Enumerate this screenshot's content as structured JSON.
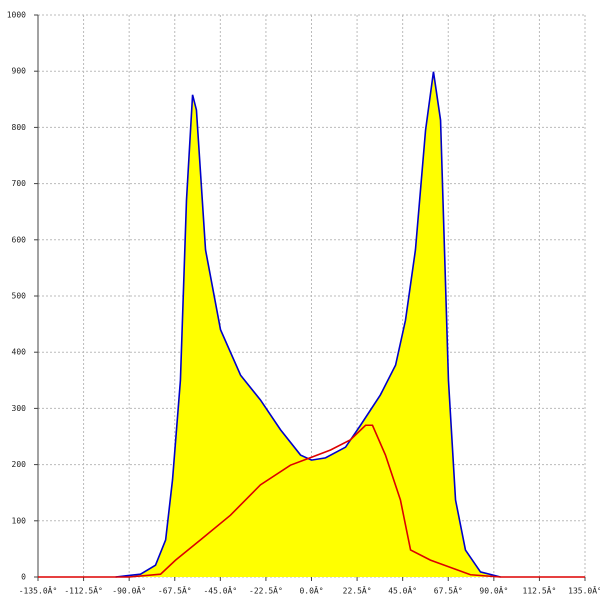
{
  "chart_data": {
    "type": "area",
    "xlim": [
      -135,
      135
    ],
    "ylim": [
      0,
      1000
    ],
    "xticks": [
      {
        "value": -135,
        "label": "-135.0Â°"
      },
      {
        "value": -112.5,
        "label": "-112.5Â°"
      },
      {
        "value": -90,
        "label": "-90.0Â°"
      },
      {
        "value": -67.5,
        "label": "-67.5Â°"
      },
      {
        "value": -45,
        "label": "-45.0Â°"
      },
      {
        "value": -22.5,
        "label": "-22.5Â°"
      },
      {
        "value": 0,
        "label": "0.0Â°"
      },
      {
        "value": 22.5,
        "label": "22.5Â°"
      },
      {
        "value": 45,
        "label": "45.0Â°"
      },
      {
        "value": 67.5,
        "label": "67.5Â°"
      },
      {
        "value": 90,
        "label": "90.0Â°"
      },
      {
        "value": 112.5,
        "label": "112.5Â°"
      },
      {
        "value": 135,
        "label": "135.0Â°"
      }
    ],
    "yticks": [
      0,
      100,
      200,
      300,
      400,
      500,
      600,
      700,
      800,
      900,
      1000
    ],
    "grid": true,
    "series": [
      {
        "color": "#0000cc",
        "fill": "#ffff00",
        "x": [
          -96.7,
          -84.4,
          -77,
          -72,
          -68.6,
          -64.7,
          -61.7,
          -58.7,
          -56.8,
          -52.3,
          -44.9,
          -35,
          -25.2,
          -15.3,
          -5.4,
          0,
          6.9,
          16.8,
          24.2,
          34,
          41.5,
          46.4,
          51.3,
          56.3,
          60.2,
          63.7,
          67.6,
          71.1,
          76,
          83.4,
          93.3
        ],
        "values": [
          0,
          5,
          21,
          66,
          173,
          350,
          671,
          858,
          831,
          582,
          440,
          359,
          315,
          262,
          217,
          208,
          212,
          231,
          270,
          324,
          377,
          457,
          582,
          795,
          899,
          813,
          350,
          137,
          48,
          9,
          0
        ]
      },
      {
        "color": "#dd0000",
        "x": [
          -135,
          -90,
          -74.5,
          -67.1,
          -54.8,
          -40,
          -25.2,
          -10.4,
          0,
          9.4,
          19.2,
          26.7,
          30.1,
          36.5,
          43.9,
          48.9,
          58.7,
          78.5,
          93.3,
          135
        ],
        "values": [
          0,
          0,
          5,
          30,
          66,
          110,
          164,
          199,
          213,
          226,
          244,
          270,
          270,
          217,
          137,
          48,
          30,
          4,
          0,
          0
        ]
      }
    ]
  }
}
